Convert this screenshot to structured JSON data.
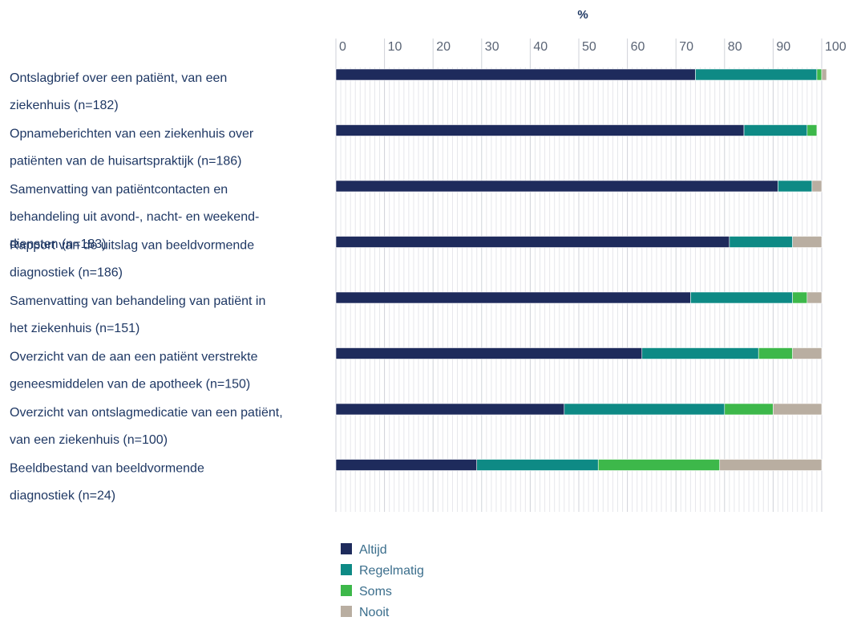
{
  "chart_data": {
    "type": "bar",
    "orientation": "horizontal",
    "stacked": true,
    "xlabel": "%",
    "xlim": [
      0,
      100
    ],
    "ticks": [
      "0",
      "10",
      "20",
      "30",
      "40",
      "50",
      "60",
      "70",
      "80",
      "90",
      "100"
    ],
    "grid": true,
    "legend_position": "bottom",
    "categories": [
      [
        "Ontslagbrief over een patiënt, van een",
        "ziekenhuis (n=182)"
      ],
      [
        "Opnameberichten van een ziekenhuis over",
        "patiënten van de huisartspraktijk (n=186)"
      ],
      [
        "Samenvatting van patiëntcontacten en",
        "behandeling uit avond-, nacht- en weekend-",
        "diensten (n=183)"
      ],
      [
        "Rapport van de uitslag van beeldvormende",
        "diagnostiek (n=186)"
      ],
      [
        "Samenvatting van behandeling van patiënt in",
        "het ziekenhuis (n=151)"
      ],
      [
        "Overzicht van de aan een patiënt verstrekte",
        "geneesmiddelen van de apotheek (n=150)"
      ],
      [
        "Overzicht van ontslagmedicatie van een patiënt,",
        "van een ziekenhuis (n=100)"
      ],
      [
        "Beeldbestand van beeldvormende",
        "diagnostiek (n=24)"
      ]
    ],
    "series": [
      {
        "name": "Altijd",
        "color": "#1e2b5c",
        "values": [
          74,
          84,
          91,
          81,
          73,
          63,
          47,
          29
        ]
      },
      {
        "name": "Regelmatig",
        "color": "#0e8a85",
        "values": [
          25,
          13,
          7,
          13,
          21,
          24,
          33,
          25
        ]
      },
      {
        "name": "Soms",
        "color": "#3db84a",
        "values": [
          1,
          2,
          0,
          0,
          3,
          7,
          10,
          25
        ]
      },
      {
        "name": "Nooit",
        "color": "#b9aea1",
        "values": [
          1,
          0,
          2,
          6,
          3,
          6,
          10,
          21
        ]
      }
    ]
  }
}
